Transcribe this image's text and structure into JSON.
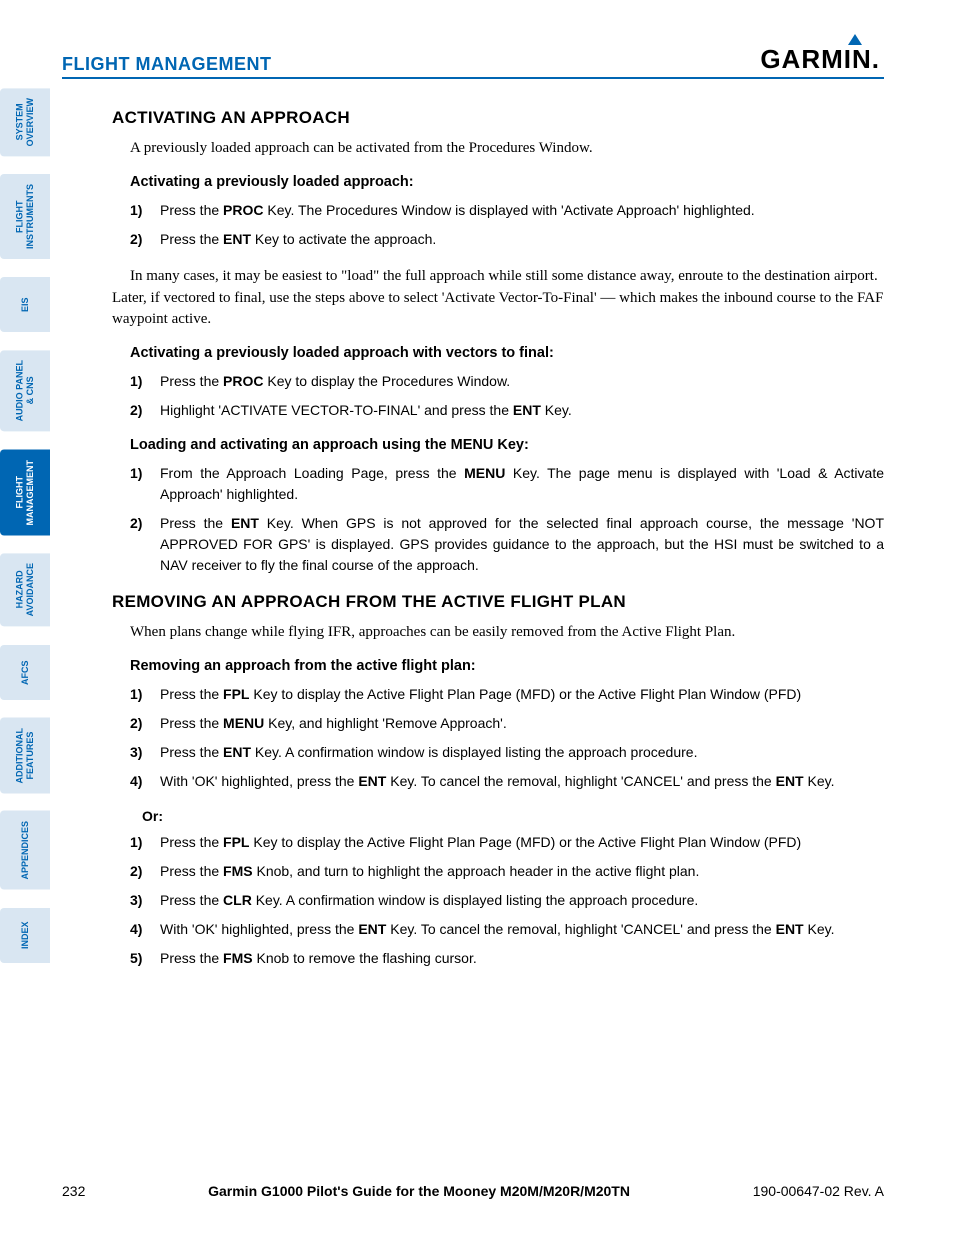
{
  "colors": {
    "brand_blue": "#0066b3",
    "tab_bg": "#d9e6f2",
    "text": "#000000",
    "background": "#ffffff"
  },
  "typography": {
    "sans": "Arial, Helvetica, sans-serif",
    "serif": "Georgia, 'Times New Roman', serif",
    "h2_size": 17,
    "h3_size": 14.5,
    "body_size": 15,
    "step_size": 14,
    "tab_size": 9
  },
  "header": {
    "title": "FLIGHT MANAGEMENT",
    "logo_text": "GARMIN"
  },
  "tabs": [
    {
      "label": "SYSTEM\nOVERVIEW",
      "active": false
    },
    {
      "label": "FLIGHT\nINSTRUMENTS",
      "active": false
    },
    {
      "label": "EIS",
      "active": false
    },
    {
      "label": "AUDIO PANEL\n& CNS",
      "active": false
    },
    {
      "label": "FLIGHT\nMANAGEMENT",
      "active": true
    },
    {
      "label": "HAZARD\nAVOIDANCE",
      "active": false
    },
    {
      "label": "AFCS",
      "active": false
    },
    {
      "label": "ADDITIONAL\nFEATURES",
      "active": false
    },
    {
      "label": "APPENDICES",
      "active": false
    },
    {
      "label": "INDEX",
      "active": false
    }
  ],
  "section1": {
    "title": "ACTIVATING AN APPROACH",
    "intro": "A previously loaded approach can be activated from the Procedures Window.",
    "sub1_title": "Activating a previously loaded approach:",
    "sub1_steps": [
      {
        "n": "1)",
        "pre": "Press the ",
        "key": "PROC",
        "post": " Key.  The Procedures Window is displayed with 'Activate Approach' highlighted."
      },
      {
        "n": "2)",
        "pre": "Press the ",
        "key": "ENT",
        "post": " Key to activate the approach."
      }
    ],
    "mid_para": "In many cases, it may be easiest to \"load\" the full approach while still some distance away, enroute to the destination airport. Later, if vectored to final, use the steps above to select 'Activate Vector-To-Final' — which makes the inbound course to the FAF waypoint active.",
    "sub2_title": "Activating a previously loaded approach with vectors to final:",
    "sub2_steps": [
      {
        "n": "1)",
        "pre": "Press the ",
        "key": "PROC",
        "post": " Key to display the Procedures Window."
      },
      {
        "n": "2)",
        "pre": "Highlight 'ACTIVATE VECTOR-TO-FINAL' and press the ",
        "key": "ENT",
        "post": " Key."
      }
    ],
    "sub3_title": "Loading and activating an approach using the MENU Key:",
    "sub3_steps": [
      {
        "n": "1)",
        "pre": "From the Approach Loading Page, press the ",
        "key": "MENU",
        "post": " Key.  The page menu is displayed with 'Load & Activate Approach' highlighted."
      },
      {
        "n": "2)",
        "pre": "Press the ",
        "key": "ENT",
        "post": " Key.  When GPS is not approved for the selected final approach course, the message 'NOT APPROVED FOR GPS' is displayed.  GPS provides guidance to the approach, but the HSI must be switched to a NAV receiver to fly the final course of the approach."
      }
    ]
  },
  "section2": {
    "title": "REMOVING AN APPROACH FROM THE ACTIVE FLIGHT PLAN",
    "intro": "When plans change while flying IFR,  approaches can be easily removed from the Active Flight Plan.",
    "sub1_title": "Removing an approach from the active flight plan:",
    "stepsA": [
      {
        "n": "1)",
        "html": "Press the <b>FPL</b> Key to display the Active Flight Plan Page (MFD) or the Active Flight Plan Window (PFD)"
      },
      {
        "n": "2)",
        "html": "Press the <b>MENU</b> Key, and highlight 'Remove Approach'."
      },
      {
        "n": "3)",
        "html": "Press the <b>ENT</b> Key.  A confirmation window is displayed listing the approach procedure."
      },
      {
        "n": "4)",
        "html": "With 'OK' highlighted, press the <b>ENT</b> Key.  To cancel the removal, highlight 'CANCEL' and press the <b>ENT</b> Key."
      }
    ],
    "or_label": "Or:",
    "stepsB": [
      {
        "n": "1)",
        "html": "Press the <b>FPL</b> Key to display the Active Flight Plan Page (MFD) or the Active Flight Plan Window (PFD)"
      },
      {
        "n": "2)",
        "html": "Press the <b>FMS</b> Knob, and turn to highlight the approach header in the active flight plan."
      },
      {
        "n": "3)",
        "html": "Press the <b>CLR</b> Key.  A confirmation window is displayed listing the approach procedure."
      },
      {
        "n": "4)",
        "html": "With 'OK' highlighted, press the <b>ENT</b> Key.  To cancel the removal, highlight 'CANCEL' and press the <b>ENT</b> Key."
      },
      {
        "n": "5)",
        "html": "Press the <b>FMS</b> Knob to remove the flashing cursor."
      }
    ]
  },
  "footer": {
    "page": "232",
    "center": "Garmin G1000 Pilot's Guide for the Mooney M20M/M20R/M20TN",
    "right": "190-00647-02   Rev. A"
  }
}
